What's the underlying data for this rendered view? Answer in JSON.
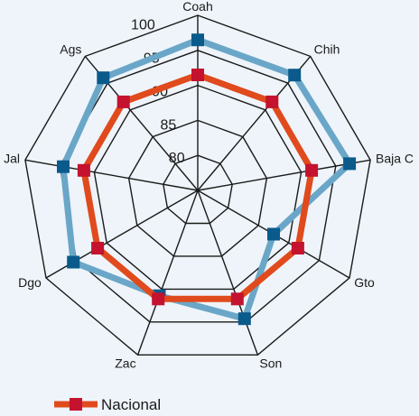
{
  "chart_data": {
    "type": "radar",
    "axes": [
      "Coah",
      "Chih",
      "Baja C",
      "Gto",
      "Son",
      "Zac",
      "Dgo",
      "Jal",
      "Ags"
    ],
    "rlim": [
      75,
      100
    ],
    "ticks": [
      80,
      85,
      90,
      95,
      100
    ],
    "tick_labels": [
      "80",
      "85",
      "90",
      "95",
      "100"
    ],
    "grid": true,
    "legend_position": "bottom-left",
    "series": [
      {
        "name": "Nacional",
        "color": "#e04a1d",
        "marker_color": "#c4122f",
        "values": [
          91.5,
          91.5,
          91.5,
          91.5,
          91.5,
          91.5,
          91.5,
          91.5,
          91.5
        ],
        "show_in_legend": true
      },
      {
        "name": "",
        "color": "#6aa6c8",
        "marker_color": "#0a5a8c",
        "values": [
          96.5,
          96.5,
          97.0,
          87.5,
          94.5,
          91.0,
          95.5,
          94.5,
          96.0
        ],
        "show_in_legend": false
      }
    ]
  }
}
